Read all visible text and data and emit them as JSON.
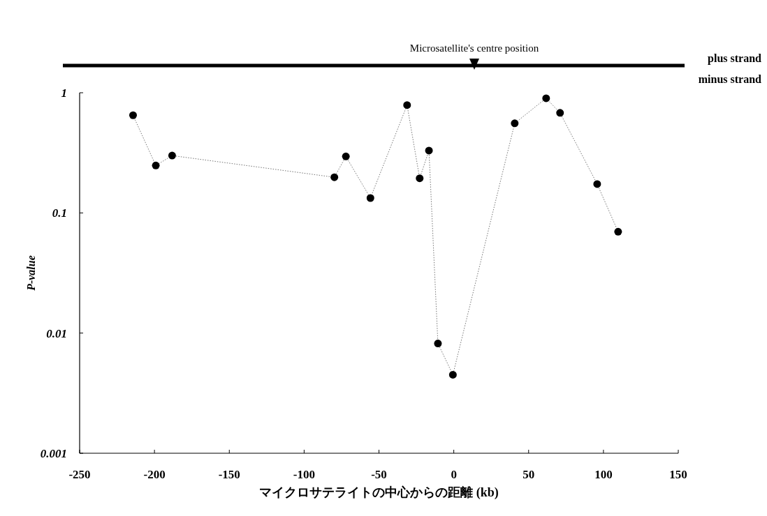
{
  "chart_data": {
    "type": "line",
    "x": [
      -214.3,
      -199.1,
      -188.2,
      -79.8,
      -72.1,
      -55.7,
      -31.2,
      -22.8,
      -16.6,
      -10.6,
      -0.6,
      40.7,
      61.7,
      71.0,
      95.8,
      109.8
    ],
    "series": [
      {
        "color": "#000000",
        "values": [
          0.65,
          0.248,
          0.3,
          0.198,
          0.295,
          0.133,
          0.79,
          0.194,
          0.33,
          0.0082,
          0.0045,
          0.557,
          0.9,
          0.68,
          0.174,
          0.0697
        ]
      }
    ],
    "xlim": [
      -250,
      150
    ],
    "xticks": [
      -250,
      -200,
      -150,
      -100,
      -50,
      0,
      50,
      100,
      150
    ],
    "ylim": [
      0.001,
      1
    ],
    "yticks": [
      0.001,
      0.01,
      0.1,
      1
    ],
    "log": true,
    "marker": "circle",
    "line_style": "dotted",
    "xlabel": "マイクロサテライトの中心からの距離 (kb)",
    "ylabel": "P-value",
    "annotations": [
      "Microsatellite's centre position",
      "plus strand",
      "minus strand"
    ]
  }
}
